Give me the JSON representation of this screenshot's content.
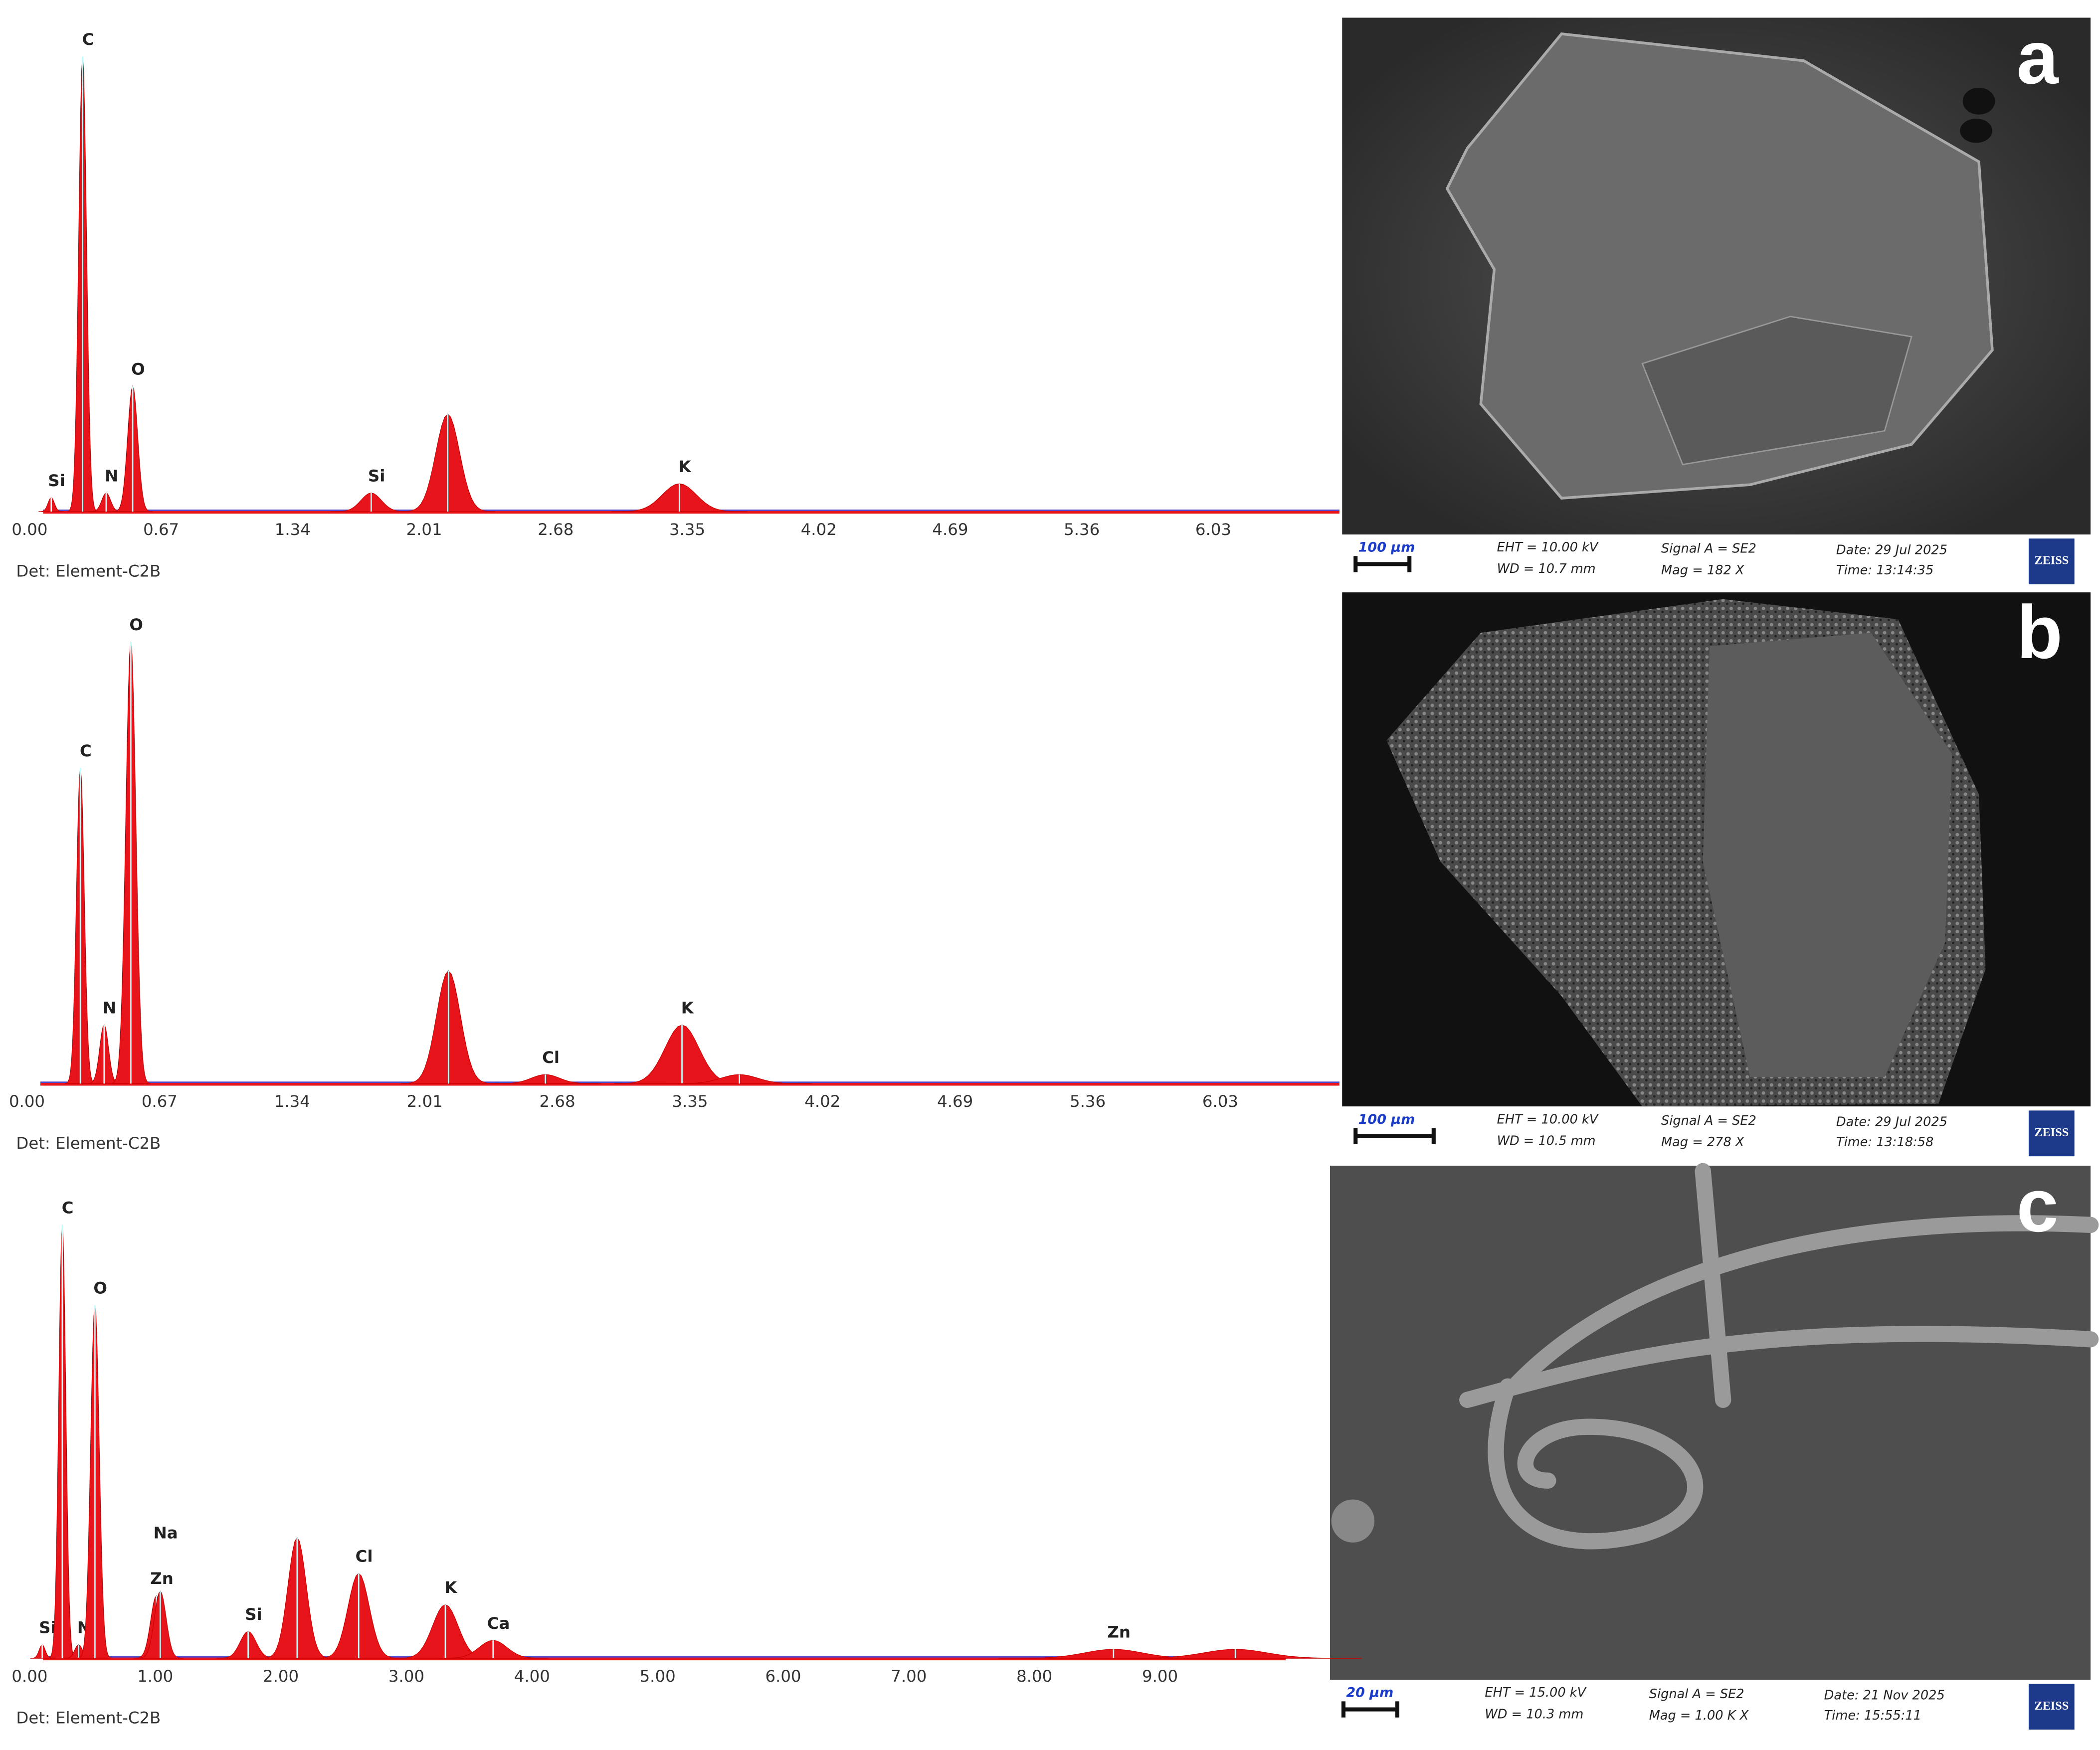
{
  "chart_data": [
    {
      "type": "spectrum",
      "color": "#e8141c",
      "baseline_color": "#4a4ad0",
      "detector": "Det: Element-C2B",
      "xlim": [
        0,
        6.7
      ],
      "ylim": [
        0,
        100
      ],
      "xticks": [
        {
          "value": 0,
          "label": "0.00"
        },
        0.67,
        1.34,
        2.01,
        2.68,
        3.35,
        4.02,
        4.69,
        5.36,
        6.03
      ],
      "peaks": [
        {
          "label": "Si",
          "x": 0.11,
          "height": 3
        },
        {
          "label": "C",
          "x": 0.27,
          "height": 98
        },
        {
          "label": "N",
          "x": 0.39,
          "height": 4
        },
        {
          "label": "O",
          "x": 0.525,
          "height": 27
        },
        {
          "label": "Si",
          "x": 1.74,
          "height": 4
        },
        {
          "label": null,
          "x": 2.13,
          "height": 21
        },
        {
          "label": "K",
          "x": 3.31,
          "height": 6
        }
      ]
    },
    {
      "type": "spectrum",
      "color": "#e8141c",
      "baseline_color": "#4a4ad0",
      "detector": "Det: Element-C2B",
      "xlim": [
        0,
        6.7
      ],
      "ylim": [
        0,
        100
      ],
      "xticks": [
        {
          "value": 0,
          "label": "0.00"
        },
        0.67,
        1.34,
        2.01,
        2.68,
        3.35,
        4.02,
        4.69,
        5.36,
        6.03
      ],
      "peaks": [
        {
          "label": "C",
          "x": 0.27,
          "height": 70
        },
        {
          "label": "N",
          "x": 0.39,
          "height": 13
        },
        {
          "label": "O",
          "x": 0.525,
          "height": 98
        },
        {
          "label": null,
          "x": 2.13,
          "height": 25
        },
        {
          "label": "Cl",
          "x": 2.62,
          "height": 2
        },
        {
          "label": "K",
          "x": 3.31,
          "height": 13
        },
        {
          "label": null,
          "x": 3.6,
          "height": 2
        }
      ]
    },
    {
      "type": "spectrum",
      "color": "#e8141c",
      "baseline_color": "#4a4ad0",
      "detector": "Det: Element-C2B",
      "xlim": [
        0,
        10
      ],
      "ylim": [
        0,
        100
      ],
      "xticks": [
        {
          "value": 0,
          "label": "0.00"
        },
        {
          "value": 1,
          "label": "1.00"
        },
        {
          "value": 2,
          "label": "2.00"
        },
        {
          "value": 3,
          "label": "3.00"
        },
        {
          "value": 4,
          "label": "4.00"
        },
        {
          "value": 5,
          "label": "5.00"
        },
        {
          "value": 6,
          "label": "6.00"
        },
        {
          "value": 7,
          "label": "7.00"
        },
        {
          "value": 8,
          "label": "8.00"
        },
        {
          "value": 9,
          "label": "9.00"
        }
      ],
      "peaks": [
        {
          "label": "Si",
          "x": 0.1,
          "height": 3
        },
        {
          "label": "C",
          "x": 0.26,
          "height": 97
        },
        {
          "label": "N",
          "x": 0.39,
          "height": 3
        },
        {
          "label": "O",
          "x": 0.52,
          "height": 79
        },
        {
          "label": "Zn",
          "x": 1.01,
          "height": 14
        },
        {
          "label": "Na",
          "x": 1.04,
          "height": 15
        },
        {
          "label": "Si",
          "x": 1.74,
          "height": 6
        },
        {
          "label": null,
          "x": 2.13,
          "height": 27
        },
        {
          "label": "Cl",
          "x": 2.62,
          "height": 19
        },
        {
          "label": "K",
          "x": 3.31,
          "height": 12
        },
        {
          "label": "Ca",
          "x": 3.69,
          "height": 4
        },
        {
          "label": "Zn",
          "x": 8.63,
          "height": 2
        },
        {
          "label": null,
          "x": 9.6,
          "height": 2
        }
      ]
    }
  ],
  "sem_images": [
    {
      "letter": "a",
      "scale_bar": "100 µm",
      "eht": "EHT = 10.00 kV",
      "wd": "WD = 10.7 mm",
      "signal": "Signal A = SE2",
      "mag": "Mag =   182 X",
      "date": "Date: 29 Jul 2025",
      "time": "Time: 13:14:35",
      "logo": "ZEISS"
    },
    {
      "letter": "b",
      "scale_bar": "100 µm",
      "eht": "EHT = 10.00 kV",
      "wd": "WD = 10.5 mm",
      "signal": "Signal A = SE2",
      "mag": "Mag =   278 X",
      "date": "Date: 29 Jul 2025",
      "time": "Time: 13:18:58",
      "logo": "ZEISS"
    },
    {
      "letter": "c",
      "scale_bar": "20 µm",
      "eht": "EHT = 15.00 kV",
      "wd": "WD = 10.3 mm",
      "signal": "Signal A = SE2",
      "mag": "Mag =   1.00 K X",
      "date": "Date: 21 Nov 2025",
      "time": "Time: 15:55:11",
      "logo": "ZEISS"
    }
  ]
}
